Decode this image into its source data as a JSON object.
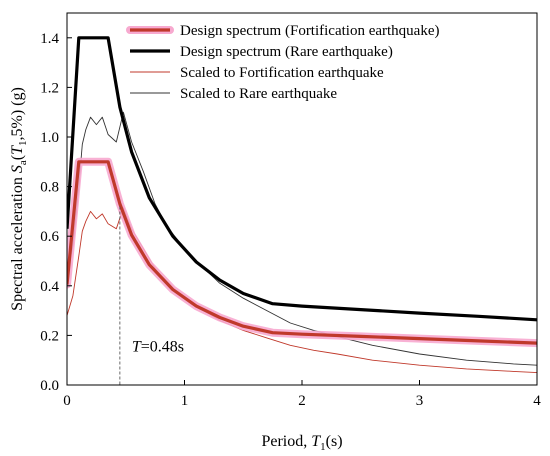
{
  "chart_data": {
    "type": "line",
    "xlabel_prefix": "Period, ",
    "xlabel_var": "T",
    "xlabel_sub": "1",
    "xlabel_suffix": "(s)",
    "ylabel_prefix": "Spectral acceleration ",
    "ylabel_var": "S",
    "ylabel_sub": "a",
    "ylabel_mid": "(",
    "ylabel_var2": "T",
    "ylabel_sub2": "1",
    "ylabel_suffix": ",5%) (g)",
    "xlim": [
      0,
      4
    ],
    "ylim": [
      0,
      1.5
    ],
    "xticks": [
      "0",
      "1",
      "2",
      "3",
      "4"
    ],
    "yticks": [
      "0.0",
      "0.2",
      "0.4",
      "0.6",
      "0.8",
      "1.0",
      "1.2",
      "1.4"
    ],
    "grid": false,
    "legend_position": "top-right",
    "annotation": {
      "x": 0.45,
      "var": "T",
      "text": "=0.48s",
      "text_y": 0.16
    },
    "series": [
      {
        "name": "Design spectrum (Fortification earthquake)",
        "color": "#c0392b",
        "highlight": "#f7a9cf",
        "style": "thick",
        "x": [
          0,
          0.1,
          0.35,
          0.45,
          0.55,
          0.7,
          0.9,
          1.1,
          1.3,
          1.5,
          1.75,
          2.0,
          2.5,
          3.0,
          3.5,
          4.0
        ],
        "y": [
          0.405,
          0.9,
          0.9,
          0.73,
          0.605,
          0.485,
          0.385,
          0.318,
          0.272,
          0.237,
          0.211,
          0.205,
          0.196,
          0.187,
          0.178,
          0.169
        ]
      },
      {
        "name": "Design spectrum (Rare earthquake)",
        "color": "#000000",
        "style": "thick",
        "x": [
          0,
          0.1,
          0.35,
          0.45,
          0.55,
          0.7,
          0.9,
          1.1,
          1.3,
          1.5,
          1.75,
          2.0,
          2.5,
          3.0,
          3.5,
          4.0
        ],
        "y": [
          0.63,
          1.4,
          1.4,
          1.12,
          0.94,
          0.755,
          0.6,
          0.496,
          0.423,
          0.369,
          0.328,
          0.318,
          0.304,
          0.29,
          0.277,
          0.263
        ]
      },
      {
        "name": "Scaled to Fortification earthquake",
        "color": "#c0392b",
        "style": "thin",
        "x": [
          0,
          0.05,
          0.1,
          0.13,
          0.16,
          0.2,
          0.25,
          0.3,
          0.35,
          0.42,
          0.48,
          0.55,
          0.65,
          0.75,
          0.85,
          0.95,
          1.1,
          1.3,
          1.5,
          1.7,
          1.9,
          2.1,
          2.3,
          2.6,
          3.0,
          3.4,
          3.8,
          4.0
        ],
        "y": [
          0.28,
          0.36,
          0.52,
          0.62,
          0.66,
          0.7,
          0.67,
          0.69,
          0.65,
          0.63,
          0.715,
          0.63,
          0.55,
          0.47,
          0.41,
          0.37,
          0.32,
          0.26,
          0.22,
          0.19,
          0.16,
          0.14,
          0.125,
          0.1,
          0.08,
          0.065,
          0.055,
          0.05
        ]
      },
      {
        "name": "Scaled to Rare earthquake",
        "color": "#333333",
        "style": "thin",
        "x": [
          0,
          0.05,
          0.1,
          0.13,
          0.16,
          0.2,
          0.25,
          0.3,
          0.35,
          0.42,
          0.48,
          0.55,
          0.65,
          0.75,
          0.85,
          0.95,
          1.1,
          1.3,
          1.5,
          1.7,
          1.9,
          2.1,
          2.3,
          2.6,
          3.0,
          3.4,
          3.8,
          4.0
        ],
        "y": [
          0.44,
          0.56,
          0.8,
          0.97,
          1.03,
          1.08,
          1.05,
          1.08,
          1.01,
          0.98,
          1.1,
          0.98,
          0.86,
          0.73,
          0.64,
          0.58,
          0.5,
          0.41,
          0.35,
          0.3,
          0.25,
          0.22,
          0.195,
          0.16,
          0.125,
          0.1,
          0.085,
          0.08
        ]
      }
    ]
  }
}
